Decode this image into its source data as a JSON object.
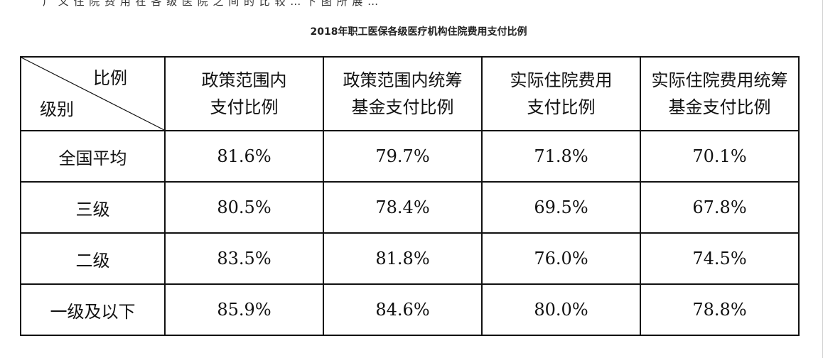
{
  "top_clipped_text": "广 义 住 院 费 用 在 各 级 医 院 之 间 的 比 较 … 下 图 所 展 …",
  "table": {
    "title": "2018年职工医保各级医疗机构住院费用支付比例",
    "corner": {
      "top": "比例",
      "bottom": "级别"
    },
    "columns": [
      {
        "line1": "政策范围内",
        "line2": "支付比例"
      },
      {
        "line1": "政策范围内统筹",
        "line2": "基金支付比例"
      },
      {
        "line1": "实际住院费用",
        "line2": "支付比例"
      },
      {
        "line1": "实际住院费用统筹",
        "line2": "基金支付比例"
      }
    ],
    "rows": [
      {
        "level": "全国平均",
        "values": [
          "81.6%",
          "79.7%",
          "71.8%",
          "70.1%"
        ]
      },
      {
        "level": "三级",
        "values": [
          "80.5%",
          "78.4%",
          "69.5%",
          "67.8%"
        ]
      },
      {
        "level": "二级",
        "values": [
          "83.5%",
          "81.8%",
          "76.0%",
          "74.5%"
        ]
      },
      {
        "level": "一级及以下",
        "values": [
          "85.9%",
          "84.6%",
          "80.0%",
          "78.8%"
        ]
      }
    ]
  }
}
